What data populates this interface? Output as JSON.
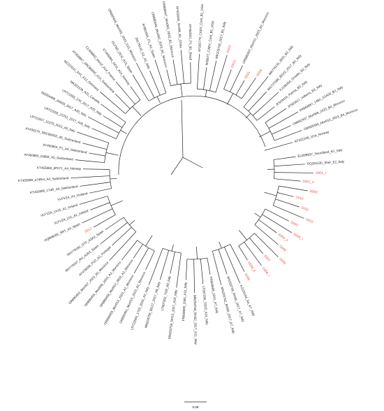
{
  "tree": {
    "leaves": [
      {
        "label": "EU289837_Noordland_E1_Italy",
        "color": "#222222"
      },
      {
        "label": "OQ291130_Sher_E2_Italy",
        "color": "#222222"
      },
      {
        "label": "G001_I",
        "color": "#e8453c"
      },
      {
        "label": "G001_II",
        "color": "#e8453c"
      },
      {
        "label": "G002",
        "color": "#e8453c"
      },
      {
        "label": "G010",
        "color": "#e8453c"
      },
      {
        "label": "G011",
        "color": "#e8453c"
      },
      {
        "label": "G012",
        "color": "#e8453c"
      },
      {
        "label": "G003",
        "color": "#e8453c"
      },
      {
        "label": "G004_I",
        "color": "#e8453c"
      },
      {
        "label": "G004_II",
        "color": "#e8453c"
      },
      {
        "label": "G005",
        "color": "#e8453c"
      },
      {
        "label": "G006",
        "color": "#e8453c"
      },
      {
        "label": "G007",
        "color": "#e8453c"
      },
      {
        "label": "G008_I",
        "color": "#e8453c"
      },
      {
        "label": "G008_II",
        "color": "#e8453c"
      },
      {
        "label": "G009",
        "color": "#e8453c"
      },
      {
        "label": "AJ225164_Sa_A7_Italy",
        "color": "#222222"
      },
      {
        "label": "MN203758_RH45_2017_A7_Italy",
        "color": "#222222"
      },
      {
        "label": "MN203762_BG80_2017_A7_Italy",
        "color": "#222222"
      },
      {
        "label": "FR669668_2241_A7_Italy",
        "color": "#222222"
      },
      {
        "label": "LT607296_TO22_A11_Italy",
        "color": "#222222"
      },
      {
        "label": "MN203760_RH32_2017_A11_Italy",
        "color": "#222222"
      },
      {
        "label": "FR669669_2061_A11_Italy",
        "color": "#222222"
      },
      {
        "label": "MN203759_RH12_2017_A10_Italy",
        "color": "#222222"
      },
      {
        "label": "LT607302_TO9_A9_Italy",
        "color": "#222222"
      },
      {
        "label": "MN203756_BG17_2017_A9_Italy",
        "color": "#222222"
      },
      {
        "label": "LR722593_1703_2016_A2_Italy",
        "color": "#222222"
      },
      {
        "label": "OR890461_Mor015_2023_A2_Morocco",
        "color": "#222222"
      },
      {
        "label": "OR890459_Mor013_2023_A2_Morocco",
        "color": "#222222"
      },
      {
        "label": "OR890458_Mor012_2023_A2_Morocco",
        "color": "#222222"
      },
      {
        "label": "OR890455_Mor009_2023_A2_Morocco",
        "color": "#222222"
      },
      {
        "label": "OR890453_Mor007_2023_A2_Morocco",
        "color": "#222222"
      },
      {
        "label": "AY476038_P1D_A2_Portugal",
        "color": "#222222"
      },
      {
        "label": "MH779157_RH_A3A3_Spain",
        "color": "#222222"
      },
      {
        "label": "MH779160_OTF_A3A3_Spain",
        "color": "#222222"
      },
      {
        "label": "G017",
        "color": "#e8453c"
      },
      {
        "label": "HQ848265_SRT_A3_Spain",
        "color": "#222222"
      },
      {
        "label": "VLFVZA_Lh1_A1_Ireland",
        "color": "#222222"
      },
      {
        "label": "VLFVZA_Lh16_A1_Ireland",
        "color": "#222222"
      },
      {
        "label": "VLFVZA_A1_Holland",
        "color": "#222222"
      },
      {
        "label": "KT455990_c74R_A4_Switzerland",
        "color": "#222222"
      },
      {
        "label": "KT455989_a74RH_A4_Switzerland",
        "color": "#222222"
      },
      {
        "label": "KT455980_dF071_A4_Norway",
        "color": "#222222"
      },
      {
        "label": "AY450865_Gt868_A5_Switzerland",
        "color": "#222222"
      },
      {
        "label": "AY450864_P1_A4_Switzerland",
        "color": "#222222"
      },
      {
        "label": "AY434170_SRCB0055_A5_Switzerland",
        "color": "#222222"
      },
      {
        "label": "LR721557_11379_2012_A5_Italy",
        "color": "#222222"
      },
      {
        "label": "LR721556_23751_2017_A20_Italy",
        "color": "#222222"
      },
      {
        "label": "MZ054466_A0029_2017_A20_Italy",
        "color": "#222222"
      },
      {
        "label": "LR721555_270_2017_A20_Italy",
        "color": "#222222"
      },
      {
        "label": "MK321129_A21_Canada",
        "color": "#222222"
      },
      {
        "label": "MZ223111_SV1_A12_Germany",
        "color": "#222222"
      },
      {
        "label": "AY450857_SRCB0002_A14_Switzerland",
        "color": "#222222"
      },
      {
        "label": "CL668862_Mo12_A14_France",
        "color": "#222222"
      },
      {
        "label": "KT455994_OCG_A14_Norway",
        "color": "#222222"
      },
      {
        "label": "OLVSD_OCG_A13_Spain",
        "color": "#222222"
      },
      {
        "label": "OR890445_Mor001_2023_A13_Morocco",
        "color": "#222222"
      },
      {
        "label": "JN179142_G1_A2_Italy",
        "color": "#222222"
      },
      {
        "label": "AY881656_P1_A2_Spain",
        "color": "#222222"
      },
      {
        "label": "OR890446_Mor002_2023_B1_Morocco",
        "color": "#222222"
      },
      {
        "label": "OR890447_Mor003_2023_B1_Morocco",
        "color": "#222222"
      },
      {
        "label": "AF402606_Ov496_B1_China",
        "color": "#222222"
      },
      {
        "label": "AF462021_P1_B1_Brazil",
        "color": "#222222"
      },
      {
        "label": "AY160779_CAEV_Cork_B1_USA",
        "color": "#222222"
      },
      {
        "label": "M33677_CAEV_Cork_B1_USA",
        "color": "#222222"
      },
      {
        "label": "MK378735_2017_B1_Italy",
        "color": "#222222"
      },
      {
        "label": "G013",
        "color": "#e8453c"
      },
      {
        "label": "G014",
        "color": "#e8453c"
      },
      {
        "label": "OR890457_Mor011_2023_B2_Morocco",
        "color": "#222222"
      },
      {
        "label": "G015",
        "color": "#e8453c"
      },
      {
        "label": "G016",
        "color": "#e8453c"
      },
      {
        "label": "MK778131_BG5_B2_Italy",
        "color": "#222222"
      },
      {
        "label": "MG727086_BG22_2017_B2_Italy",
        "color": "#222222"
      },
      {
        "label": "FJ195354_Orvieto_B2_Italy",
        "color": "#222222"
      },
      {
        "label": "JF503416_Parma_B3_Italy",
        "color": "#222222"
      },
      {
        "label": "JF503417_Volterra_B3_Italy",
        "color": "#222222"
      },
      {
        "label": "FR669667_1460_1GA09_B3_Italy",
        "color": "#222222"
      },
      {
        "label": "OM692457_Mor008_2023_B4_Morocco",
        "color": "#222222"
      },
      {
        "label": "OM665464_Mor010_2023_B4_Morocco",
        "color": "#222222"
      },
      {
        "label": "KF322106_1GA_Norway",
        "color": "#222222"
      }
    ],
    "scale_bar": "0.09"
  }
}
